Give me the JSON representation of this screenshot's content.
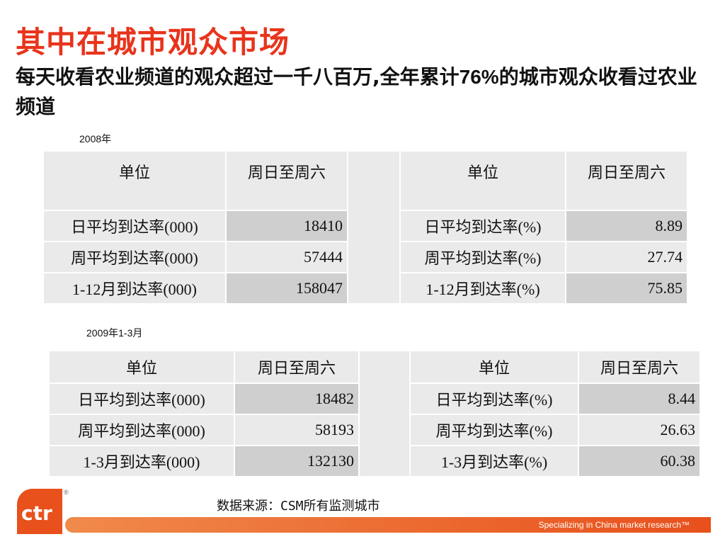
{
  "title": "其中在城市观众市场",
  "subtitle": {
    "part1": "每天收看农业频道的观众超过一千八百万,全年累计",
    "highlight": "76%",
    "part2": "的城市观众收看过农业频道"
  },
  "section2008": {
    "label": "2008年",
    "left": {
      "header": [
        "单位",
        "周日至周六"
      ],
      "rows": [
        [
          "日平均到达率(000)",
          "18410"
        ],
        [
          "周平均到达率(000)",
          "57444"
        ],
        [
          "1-12月到达率(000)",
          "158047"
        ]
      ]
    },
    "right": {
      "header": [
        "单位",
        "周日至周六"
      ],
      "rows": [
        [
          "日平均到达率(%)",
          "8.89"
        ],
        [
          "周平均到达率(%)",
          "27.74"
        ],
        [
          "1-12月到达率(%)",
          "75.85"
        ]
      ]
    }
  },
  "section2009": {
    "label": "2009年1-3月",
    "left": {
      "header": [
        "单位",
        "周日至周六"
      ],
      "rows": [
        [
          "日平均到达率(000)",
          "18482"
        ],
        [
          "周平均到达率(000)",
          "58193"
        ],
        [
          "1-3月到达率(000)",
          "132130"
        ]
      ]
    },
    "right": {
      "header": [
        "单位",
        "周日至周六"
      ],
      "rows": [
        [
          "日平均到达率(%)",
          "8.44"
        ],
        [
          "周平均到达率(%)",
          "26.63"
        ],
        [
          "1-3月到达率(%)",
          "60.38"
        ]
      ]
    }
  },
  "source": "数据来源：CSM所有监测城市",
  "footer": {
    "tagline": "Specializing in China market research™",
    "logo_text": "ctr",
    "registered": "®"
  },
  "colors": {
    "title": "#e8341c",
    "value": "#e8501c",
    "cell_light": "#eaeaea",
    "cell_dark": "#cfcfcf"
  }
}
